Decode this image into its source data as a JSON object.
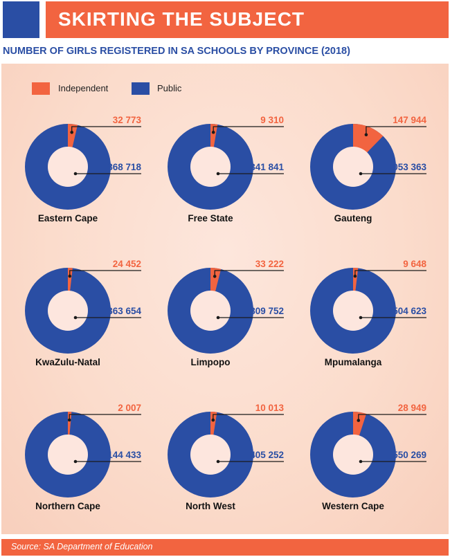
{
  "header": {
    "title": "SKIRTING THE SUBJECT"
  },
  "subtitle": "NUMBER OF GIRLS REGISTERED IN SA SCHOOLS BY PROVINCE (2018)",
  "legend": {
    "independent": {
      "label": "Independent",
      "color": "#f26440"
    },
    "public": {
      "label": "Public",
      "color": "#2a4ea4"
    }
  },
  "source": "Source: SA Department of Education",
  "chart_data": {
    "type": "pie",
    "variant": "donut",
    "title": "NUMBER OF GIRLS REGISTERED IN SA SCHOOLS BY PROVINCE (2018)",
    "series_names": [
      "Independent",
      "Public"
    ],
    "colors": [
      "#f26440",
      "#2a4ea4"
    ],
    "legend_placement": "top-left",
    "charts": [
      {
        "name": "Eastern Cape",
        "independent": 32773,
        "public": 868718,
        "independent_label": "32 773",
        "public_label": "868 718"
      },
      {
        "name": "Free State",
        "independent": 9310,
        "public": 341841,
        "independent_label": "9 310",
        "public_label": "341 841"
      },
      {
        "name": "Gauteng",
        "independent": 147944,
        "public": 1053363,
        "independent_label": "147 944",
        "public_label": "1 053 363"
      },
      {
        "name": "KwaZulu-Natal",
        "independent": 24452,
        "public": 1363654,
        "independent_label": "24 452",
        "public_label": "1 363 654"
      },
      {
        "name": "Limpopo",
        "independent": 33222,
        "public": 809752,
        "independent_label": "33 222",
        "public_label": "809 752"
      },
      {
        "name": "Mpumalanga",
        "independent": 9648,
        "public": 504623,
        "independent_label": "9 648",
        "public_label": "504 623"
      },
      {
        "name": "Northern Cape",
        "independent": 2007,
        "public": 144433,
        "independent_label": "2 007",
        "public_label": "144 433"
      },
      {
        "name": "North West",
        "independent": 10013,
        "public": 405252,
        "independent_label": "10 013",
        "public_label": "405 252"
      },
      {
        "name": "Western Cape",
        "independent": 28949,
        "public": 550269,
        "independent_label": "28 949",
        "public_label": "550 269"
      }
    ]
  }
}
